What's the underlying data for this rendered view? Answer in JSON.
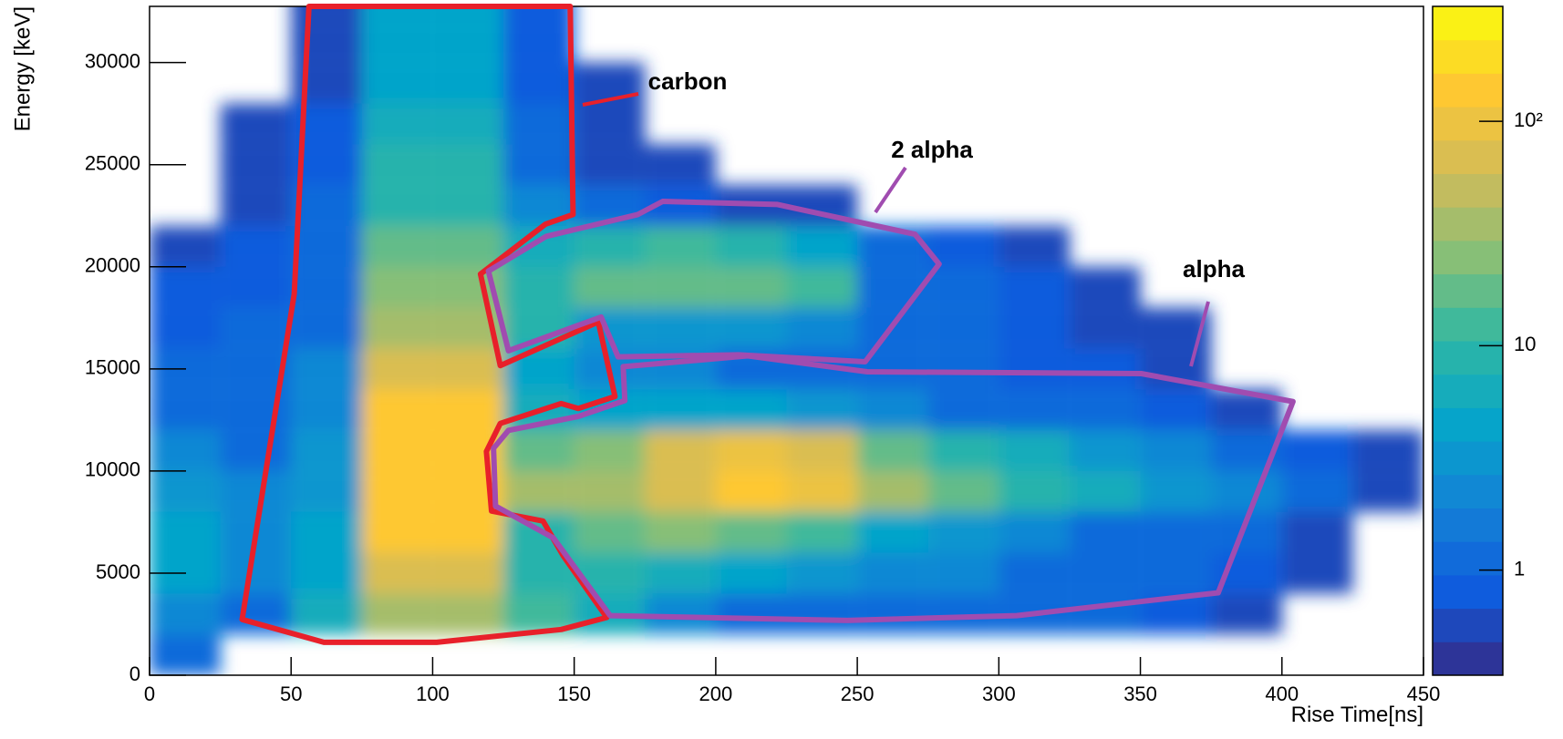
{
  "chart_data": {
    "type": "hist2d",
    "xlabel": "Rise Time[ns]",
    "ylabel": "Energy [keV]",
    "xlim": [
      0,
      450
    ],
    "ylim": [
      0,
      32750
    ],
    "xticks": [
      0,
      50,
      100,
      150,
      200,
      250,
      300,
      350,
      400,
      450
    ],
    "yticks": [
      0,
      5000,
      10000,
      15000,
      20000,
      25000,
      30000
    ],
    "zlim": [
      0.34,
      325
    ],
    "zlog": true,
    "zticks": [
      1,
      10,
      {
        "value": 100,
        "label": "10²"
      }
    ],
    "palette": [
      "#352a87",
      "#0f5cdd",
      "#1481d6",
      "#06a4ca",
      "#2eb7a4",
      "#87bf77",
      "#d1bb59",
      "#fec832",
      "#f9fb0e"
    ],
    "xbins": [
      0,
      25,
      50,
      75,
      100,
      125,
      150,
      175,
      200,
      225,
      250,
      275,
      300,
      325,
      350,
      375,
      400,
      425,
      450
    ],
    "ybins": [
      0,
      2000,
      4000,
      6000,
      8000,
      10000,
      12000,
      14000,
      16000,
      18000,
      20000,
      22000,
      24000,
      26000,
      28000,
      30000,
      32000,
      34000
    ],
    "z": [
      [
        1,
        null,
        null,
        null,
        null,
        null,
        null,
        null,
        null,
        null,
        null,
        null,
        null,
        null,
        null,
        null,
        null,
        null
      ],
      [
        2,
        1,
        6,
        40,
        40,
        12,
        6,
        2,
        1,
        1,
        1,
        1,
        1,
        1,
        0.8,
        0.6,
        null,
        null
      ],
      [
        5,
        2,
        5,
        80,
        80,
        10,
        8,
        6,
        4,
        3,
        2,
        2,
        1,
        1,
        1,
        0.8,
        0.6,
        null
      ],
      [
        4,
        2,
        4,
        120,
        120,
        10,
        15,
        25,
        20,
        12,
        5,
        3,
        2,
        1,
        1,
        1,
        0.6,
        null
      ],
      [
        3,
        2,
        3,
        150,
        150,
        40,
        30,
        60,
        120,
        100,
        40,
        15,
        10,
        6,
        3,
        2,
        1,
        0.6
      ],
      [
        2,
        1,
        3,
        150,
        150,
        20,
        25,
        60,
        100,
        60,
        20,
        10,
        6,
        3,
        2,
        1,
        0.8,
        0.6
      ],
      [
        1,
        1,
        2,
        120,
        120,
        6,
        5,
        5,
        4,
        3,
        2,
        1,
        1,
        1,
        0.8,
        0.6,
        null,
        null
      ],
      [
        1,
        1,
        2,
        80,
        80,
        4,
        2,
        2,
        1,
        1,
        1,
        1,
        0.8,
        0.8,
        0.6,
        null,
        null,
        null
      ],
      [
        0.8,
        1,
        1,
        40,
        40,
        8,
        3,
        3,
        3,
        2,
        1,
        1,
        0.8,
        0.6,
        0.6,
        null,
        null,
        null
      ],
      [
        0.8,
        0.8,
        1,
        25,
        25,
        10,
        15,
        20,
        20,
        12,
        1,
        1,
        0.8,
        0.6,
        null,
        null,
        null,
        null
      ],
      [
        0.6,
        0.8,
        1,
        15,
        15,
        6,
        10,
        12,
        10,
        5,
        1,
        0.8,
        0.6,
        null,
        null,
        null,
        null,
        null
      ],
      [
        null,
        0.6,
        1,
        10,
        10,
        2,
        1,
        0.8,
        0.6,
        0.6,
        null,
        null,
        null,
        null,
        null,
        null,
        null,
        null
      ],
      [
        null,
        0.6,
        0.8,
        8,
        8,
        1,
        0.6,
        0.6,
        null,
        null,
        null,
        null,
        null,
        null,
        null,
        null,
        null,
        null
      ],
      [
        null,
        0.6,
        0.8,
        6,
        6,
        1,
        0.6,
        null,
        null,
        null,
        null,
        null,
        null,
        null,
        null,
        null,
        null,
        null
      ],
      [
        null,
        null,
        0.6,
        5,
        5,
        0.8,
        0.6,
        null,
        null,
        null,
        null,
        null,
        null,
        null,
        null,
        null,
        null,
        null
      ],
      [
        null,
        null,
        0.6,
        5,
        5,
        0.8,
        null,
        null,
        null,
        null,
        null,
        null,
        null,
        null,
        null,
        null,
        null,
        null
      ],
      [
        null,
        null,
        0.6,
        5,
        5,
        0.8,
        null,
        null,
        null,
        null,
        null,
        null,
        null,
        null,
        null,
        null,
        null,
        null
      ]
    ],
    "cuts": [
      {
        "name": "carbon",
        "color": "#e8202a",
        "x": [
          56.3,
          51.1,
          32.7,
          61.6,
          101.4,
          145.4,
          161.5,
          146.1,
          139,
          120.8,
          119,
          123.9,
          145.4,
          151.4,
          164.4,
          158.5,
          123.9,
          116.9,
          139.8,
          149.6,
          148.6
        ],
        "y": [
          32750,
          18660,
          2730,
          1610,
          1610,
          2240,
          2830,
          5850,
          7550,
          8040,
          10960,
          12330,
          13300,
          13060,
          13650,
          17300,
          15160,
          19640,
          22080,
          22560,
          32750
        ]
      },
      {
        "name": "2 alpha",
        "color": "#a04cb0",
        "x": [
          119.7,
          140.1,
          172.5,
          181.3,
          221.8,
          270.4,
          278.9,
          252.8,
          208.1,
          165.5,
          159.5,
          126.8
        ],
        "y": [
          19790,
          21490,
          22560,
          23200,
          23050,
          21590,
          20130,
          15350,
          15690,
          15590,
          17540,
          15890
        ]
      },
      {
        "name": "alpha",
        "color": "#a04cb0",
        "x": [
          167.3,
          211.3,
          253.5,
          350.3,
          403.9,
          377.5,
          306.3,
          246.5,
          162.7,
          142.6,
          122.2,
          121.5,
          126.8,
          151.4,
          167.9
        ],
        "y": [
          15110,
          15640,
          14860,
          14770,
          13400,
          4040,
          2920,
          2680,
          2920,
          6730,
          8280,
          11110,
          11990,
          12670,
          13450
        ]
      }
    ]
  }
}
